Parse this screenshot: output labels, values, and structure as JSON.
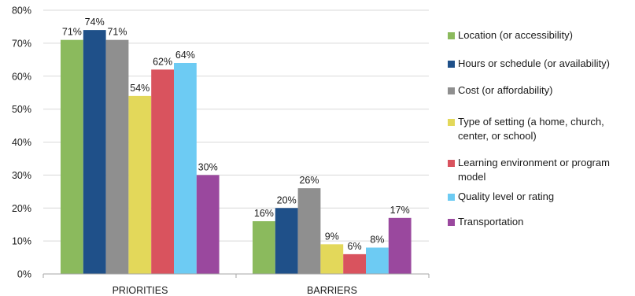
{
  "chart_data": {
    "type": "bar",
    "categories": [
      "PRIORITIES",
      "BARRIERS"
    ],
    "series": [
      {
        "name": "Location (or accessibility)",
        "color": "#8bba5d",
        "values": [
          71,
          16
        ],
        "labels": [
          "71%",
          "16%"
        ]
      },
      {
        "name": "Hours or schedule (or availability)",
        "color": "#1f5089",
        "values": [
          74,
          20
        ],
        "labels": [
          "74%",
          "20%"
        ]
      },
      {
        "name": "Cost (or affordability)",
        "color": "#8f8f8f",
        "values": [
          71,
          26
        ],
        "labels": [
          "71%",
          "26%"
        ]
      },
      {
        "name": "Type of setting (a home, church, center, or school)",
        "color": "#e3d85a",
        "values": [
          54,
          9
        ],
        "labels": [
          "54%",
          "9%"
        ]
      },
      {
        "name": "Learning environment or program model",
        "color": "#d9535e",
        "values": [
          62,
          6
        ],
        "labels": [
          "62%",
          "6%"
        ]
      },
      {
        "name": "Quality level or rating",
        "color": "#6dcbf3",
        "values": [
          64,
          8
        ],
        "labels": [
          "64%",
          "8%"
        ]
      },
      {
        "name": "Transportation",
        "color": "#9a489e",
        "values": [
          30,
          17
        ],
        "labels": [
          "30%",
          "17%"
        ]
      }
    ],
    "yticks": [
      "0%",
      "10%",
      "20%",
      "30%",
      "40%",
      "50%",
      "60%",
      "70%",
      "80%"
    ],
    "ylim": [
      0,
      80
    ],
    "grid": true,
    "legend": "right",
    "title": "",
    "xlabel": "",
    "ylabel": ""
  }
}
